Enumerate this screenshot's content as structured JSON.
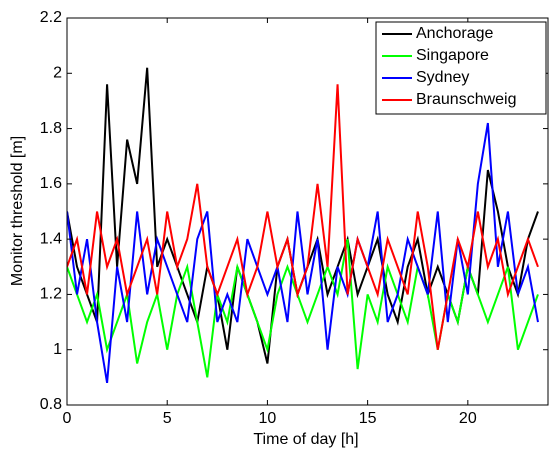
{
  "chart_data": {
    "type": "line",
    "xlabel": "Time of day [h]",
    "ylabel": "Monitor threshold [m]",
    "x": [
      0,
      0.5,
      1,
      1.5,
      2,
      2.5,
      3,
      3.5,
      4,
      4.5,
      5,
      5.5,
      6,
      6.5,
      7,
      7.5,
      8,
      8.5,
      9,
      9.5,
      10,
      10.5,
      11,
      11.5,
      12,
      12.5,
      13,
      13.5,
      14,
      14.5,
      15,
      15.5,
      16,
      16.5,
      17,
      17.5,
      18,
      18.5,
      19,
      19.5,
      20,
      20.5,
      21,
      21.5,
      22,
      22.5,
      23,
      23.5
    ],
    "series": [
      {
        "name": "Anchorage",
        "color": "#000000",
        "values": [
          1.5,
          1.3,
          1.2,
          1.1,
          1.96,
          1.3,
          1.76,
          1.6,
          2.02,
          1.3,
          1.4,
          1.3,
          1.2,
          1.1,
          1.3,
          1.2,
          1.0,
          1.3,
          1.2,
          1.1,
          0.95,
          1.3,
          1.4,
          1.2,
          1.3,
          1.4,
          1.2,
          1.3,
          1.4,
          1.2,
          1.3,
          1.4,
          1.2,
          1.1,
          1.3,
          1.4,
          1.2,
          1.3,
          1.2,
          1.1,
          1.3,
          1.2,
          1.65,
          1.5,
          1.3,
          1.2,
          1.4,
          1.5
        ]
      },
      {
        "name": "Singapore",
        "color": "#00ff00",
        "values": [
          1.3,
          1.2,
          1.1,
          1.2,
          1.0,
          1.1,
          1.2,
          0.95,
          1.1,
          1.2,
          1.0,
          1.2,
          1.3,
          1.1,
          0.9,
          1.2,
          1.1,
          1.3,
          1.2,
          1.1,
          1.0,
          1.2,
          1.3,
          1.2,
          1.1,
          1.2,
          1.3,
          1.2,
          1.4,
          0.93,
          1.2,
          1.1,
          1.3,
          1.2,
          1.1,
          1.3,
          1.2,
          1.0,
          1.2,
          1.1,
          1.3,
          1.2,
          1.1,
          1.2,
          1.3,
          1.0,
          1.1,
          1.2
        ]
      },
      {
        "name": "Sydney",
        "color": "#0000ff",
        "values": [
          1.5,
          1.2,
          1.4,
          1.1,
          0.88,
          1.3,
          1.1,
          1.5,
          1.2,
          1.4,
          1.3,
          1.2,
          1.1,
          1.4,
          1.5,
          1.1,
          1.2,
          1.1,
          1.4,
          1.3,
          1.2,
          1.3,
          1.1,
          1.5,
          1.2,
          1.4,
          1.0,
          1.3,
          1.2,
          1.4,
          1.3,
          1.5,
          1.1,
          1.2,
          1.4,
          1.3,
          1.2,
          1.5,
          1.1,
          1.4,
          1.2,
          1.6,
          1.82,
          1.3,
          1.5,
          1.2,
          1.3,
          1.1
        ]
      },
      {
        "name": "Braunschweig",
        "color": "#ff0000",
        "values": [
          1.3,
          1.4,
          1.2,
          1.5,
          1.3,
          1.4,
          1.2,
          1.3,
          1.4,
          1.2,
          1.5,
          1.3,
          1.4,
          1.6,
          1.3,
          1.2,
          1.3,
          1.4,
          1.2,
          1.3,
          1.5,
          1.3,
          1.4,
          1.2,
          1.3,
          1.6,
          1.3,
          1.96,
          1.2,
          1.4,
          1.3,
          1.2,
          1.4,
          1.3,
          1.2,
          1.5,
          1.3,
          1.0,
          1.2,
          1.4,
          1.3,
          1.5,
          1.3,
          1.4,
          1.2,
          1.3,
          1.4,
          1.3
        ]
      }
    ],
    "xlim": [
      0,
      24
    ],
    "xticks": [
      0,
      5,
      10,
      15,
      20
    ],
    "ylim": [
      0.8,
      2.2
    ],
    "yticks": [
      0.8,
      1,
      1.2,
      1.4,
      1.6,
      1.8,
      2,
      2.2
    ],
    "grid": false,
    "legend": "northeast"
  }
}
